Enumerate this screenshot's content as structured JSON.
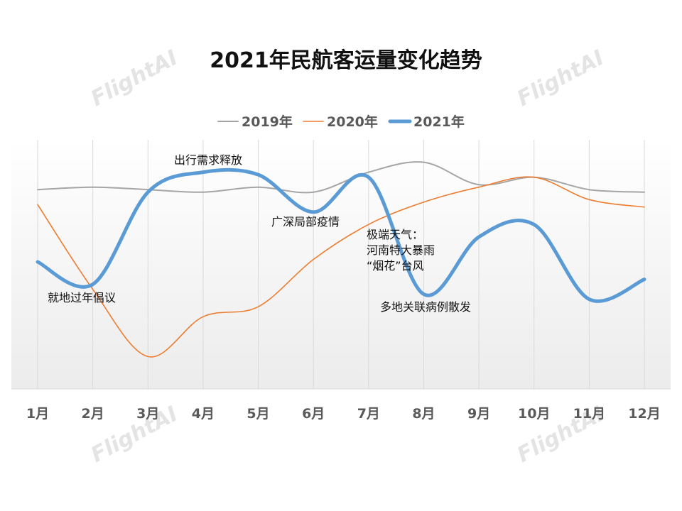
{
  "chart_data": {
    "type": "line",
    "title": "2021年民航客运量变化趋势",
    "categories": [
      "1月",
      "2月",
      "3月",
      "4月",
      "5月",
      "6月",
      "7月",
      "8月",
      "9月",
      "10月",
      "11月",
      "12月"
    ],
    "ylim": [
      0,
      100
    ],
    "grid": "vertical",
    "legend": "top-center",
    "series": [
      {
        "name": "2019年",
        "color": "#a5a5a5",
        "values": [
          80,
          81,
          80,
          79,
          81,
          79,
          87,
          91,
          82,
          85,
          80,
          79
        ]
      },
      {
        "name": "2020年",
        "color": "#ed7d31",
        "values": [
          74,
          40,
          13,
          29,
          33,
          52,
          66,
          75,
          81,
          85,
          76,
          73
        ]
      },
      {
        "name": "2021年",
        "color": "#5b9bd5",
        "values": [
          51,
          42,
          79,
          87,
          86,
          71,
          85,
          38,
          61,
          66,
          36,
          44
        ]
      }
    ],
    "annotations": [
      {
        "text": "就地过年倡议",
        "anchor_month": "2月"
      },
      {
        "text": "出行需求释放",
        "anchor_month": "4月"
      },
      {
        "text": "广深局部疫情",
        "anchor_month": "6月"
      },
      {
        "text": "极端天气：",
        "anchor_month": "7月"
      },
      {
        "text": "河南特大暴雨",
        "anchor_month": "7月"
      },
      {
        "text": "“烟花”台风",
        "anchor_month": "7月"
      },
      {
        "text": "多地关联病例散发",
        "anchor_month": "8月"
      }
    ]
  },
  "watermark": "FlightAI"
}
